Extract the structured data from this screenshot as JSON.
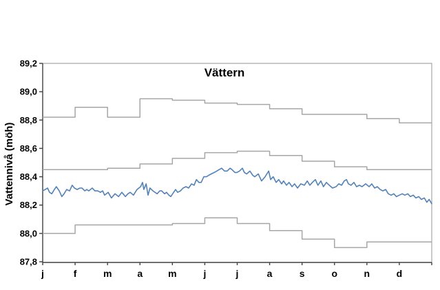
{
  "chart_data": {
    "type": "line",
    "title": "Vättern",
    "xlabel": "",
    "ylabel": "Vattennivå (möh)",
    "ylim": [
      87.8,
      89.2
    ],
    "ytick_step": 0.2,
    "ytick_labels": [
      "87,8",
      "88,0",
      "88,2",
      "88,4",
      "88,6",
      "88,8",
      "89,0",
      "89,2"
    ],
    "categories": [
      "j",
      "f",
      "m",
      "a",
      "m",
      "j",
      "j",
      "a",
      "s",
      "o",
      "n",
      "d"
    ],
    "grid": false,
    "legend_position": "none",
    "colors": {
      "envelope_line": "#a6a6a6",
      "daily_line": "#4f81bd",
      "axis": "#404040",
      "plot_border": "#a6a6a6",
      "background": "#ffffff",
      "text": "#000000"
    },
    "series": [
      {
        "name": "upper-envelope-step",
        "style": "step",
        "color_key": "envelope_line",
        "values": [
          88.82,
          88.89,
          88.82,
          88.95,
          88.94,
          88.92,
          88.91,
          88.88,
          88.84,
          88.84,
          88.81,
          88.78
        ]
      },
      {
        "name": "middle-envelope-step",
        "style": "step",
        "color_key": "envelope_line",
        "values": [
          88.45,
          88.45,
          88.46,
          88.49,
          88.53,
          88.57,
          88.58,
          88.55,
          88.51,
          88.47,
          88.45,
          88.45
        ]
      },
      {
        "name": "lower-envelope-step",
        "style": "step",
        "color_key": "envelope_line",
        "values": [
          88.0,
          88.06,
          88.06,
          88.06,
          88.07,
          88.11,
          88.07,
          88.02,
          87.96,
          87.9,
          87.94,
          87.94
        ]
      },
      {
        "name": "daily-water-level",
        "style": "line",
        "color_key": "daily_line",
        "points": [
          [
            0.0,
            88.3
          ],
          [
            0.08,
            88.31
          ],
          [
            0.15,
            88.32
          ],
          [
            0.21,
            88.29
          ],
          [
            0.28,
            88.28
          ],
          [
            0.36,
            88.31
          ],
          [
            0.42,
            88.33
          ],
          [
            0.51,
            88.3
          ],
          [
            0.59,
            88.26
          ],
          [
            0.66,
            88.28
          ],
          [
            0.74,
            88.31
          ],
          [
            0.83,
            88.3
          ],
          [
            0.91,
            88.34
          ],
          [
            0.98,
            88.32
          ],
          [
            1.06,
            88.31
          ],
          [
            1.15,
            88.32
          ],
          [
            1.21,
            88.32
          ],
          [
            1.3,
            88.3
          ],
          [
            1.36,
            88.31
          ],
          [
            1.42,
            88.3
          ],
          [
            1.53,
            88.32
          ],
          [
            1.61,
            88.3
          ],
          [
            1.7,
            88.3
          ],
          [
            1.78,
            88.29
          ],
          [
            1.85,
            88.3
          ],
          [
            1.91,
            88.27
          ],
          [
            2.02,
            88.29
          ],
          [
            2.12,
            88.25
          ],
          [
            2.23,
            88.28
          ],
          [
            2.34,
            88.26
          ],
          [
            2.44,
            88.29
          ],
          [
            2.55,
            88.26
          ],
          [
            2.63,
            88.28
          ],
          [
            2.7,
            88.29
          ],
          [
            2.8,
            88.27
          ],
          [
            2.91,
            88.31
          ],
          [
            3.02,
            88.33
          ],
          [
            3.08,
            88.36
          ],
          [
            3.12,
            88.31
          ],
          [
            3.19,
            88.35
          ],
          [
            3.25,
            88.27
          ],
          [
            3.31,
            88.32
          ],
          [
            3.4,
            88.3
          ],
          [
            3.53,
            88.28
          ],
          [
            3.61,
            88.3
          ],
          [
            3.67,
            88.3
          ],
          [
            3.76,
            88.28
          ],
          [
            3.82,
            88.29
          ],
          [
            3.89,
            88.27
          ],
          [
            3.95,
            88.26
          ],
          [
            4.04,
            88.29
          ],
          [
            4.1,
            88.31
          ],
          [
            4.16,
            88.29
          ],
          [
            4.25,
            88.3
          ],
          [
            4.33,
            88.32
          ],
          [
            4.42,
            88.33
          ],
          [
            4.5,
            88.32
          ],
          [
            4.59,
            88.35
          ],
          [
            4.67,
            88.34
          ],
          [
            4.74,
            88.38
          ],
          [
            4.82,
            88.36
          ],
          [
            4.89,
            88.36
          ],
          [
            4.97,
            88.4
          ],
          [
            5.05,
            88.4
          ],
          [
            5.12,
            88.41
          ],
          [
            5.2,
            88.42
          ],
          [
            5.29,
            88.43
          ],
          [
            5.37,
            88.44
          ],
          [
            5.44,
            88.45
          ],
          [
            5.52,
            88.46
          ],
          [
            5.61,
            88.44
          ],
          [
            5.69,
            88.44
          ],
          [
            5.78,
            88.46
          ],
          [
            5.84,
            88.45
          ],
          [
            5.93,
            88.43
          ],
          [
            5.99,
            88.43
          ],
          [
            6.07,
            88.44
          ],
          [
            6.16,
            88.46
          ],
          [
            6.22,
            88.43
          ],
          [
            6.29,
            88.42
          ],
          [
            6.39,
            88.44
          ],
          [
            6.48,
            88.41
          ],
          [
            6.54,
            88.4
          ],
          [
            6.65,
            88.42
          ],
          [
            6.75,
            88.37
          ],
          [
            6.86,
            88.4
          ],
          [
            6.97,
            88.44
          ],
          [
            7.03,
            88.38
          ],
          [
            7.11,
            88.4
          ],
          [
            7.2,
            88.36
          ],
          [
            7.28,
            88.38
          ],
          [
            7.37,
            88.35
          ],
          [
            7.43,
            88.37
          ],
          [
            7.52,
            88.34
          ],
          [
            7.6,
            88.36
          ],
          [
            7.69,
            88.33
          ],
          [
            7.77,
            88.35
          ],
          [
            7.86,
            88.32
          ],
          [
            7.96,
            88.35
          ],
          [
            8.07,
            88.34
          ],
          [
            8.16,
            88.37
          ],
          [
            8.24,
            88.34
          ],
          [
            8.32,
            88.36
          ],
          [
            8.41,
            88.38
          ],
          [
            8.49,
            88.34
          ],
          [
            8.58,
            88.37
          ],
          [
            8.66,
            88.33
          ],
          [
            8.75,
            88.36
          ],
          [
            8.84,
            88.34
          ],
          [
            8.94,
            88.32
          ],
          [
            9.05,
            88.33
          ],
          [
            9.13,
            88.35
          ],
          [
            9.22,
            88.34
          ],
          [
            9.3,
            88.37
          ],
          [
            9.37,
            88.38
          ],
          [
            9.43,
            88.35
          ],
          [
            9.51,
            88.34
          ],
          [
            9.6,
            88.36
          ],
          [
            9.68,
            88.33
          ],
          [
            9.77,
            88.34
          ],
          [
            9.85,
            88.33
          ],
          [
            9.96,
            88.35
          ],
          [
            10.07,
            88.33
          ],
          [
            10.15,
            88.35
          ],
          [
            10.24,
            88.32
          ],
          [
            10.32,
            88.33
          ],
          [
            10.41,
            88.31
          ],
          [
            10.49,
            88.3
          ],
          [
            10.58,
            88.31
          ],
          [
            10.66,
            88.28
          ],
          [
            10.75,
            88.27
          ],
          [
            10.83,
            88.28
          ],
          [
            10.91,
            88.26
          ],
          [
            11.0,
            88.27
          ],
          [
            11.09,
            88.28
          ],
          [
            11.17,
            88.27
          ],
          [
            11.26,
            88.28
          ],
          [
            11.34,
            88.26
          ],
          [
            11.43,
            88.27
          ],
          [
            11.51,
            88.25
          ],
          [
            11.6,
            88.26
          ],
          [
            11.68,
            88.24
          ],
          [
            11.77,
            88.25
          ],
          [
            11.85,
            88.22
          ],
          [
            11.92,
            88.24
          ],
          [
            12.0,
            88.21
          ]
        ]
      }
    ]
  }
}
